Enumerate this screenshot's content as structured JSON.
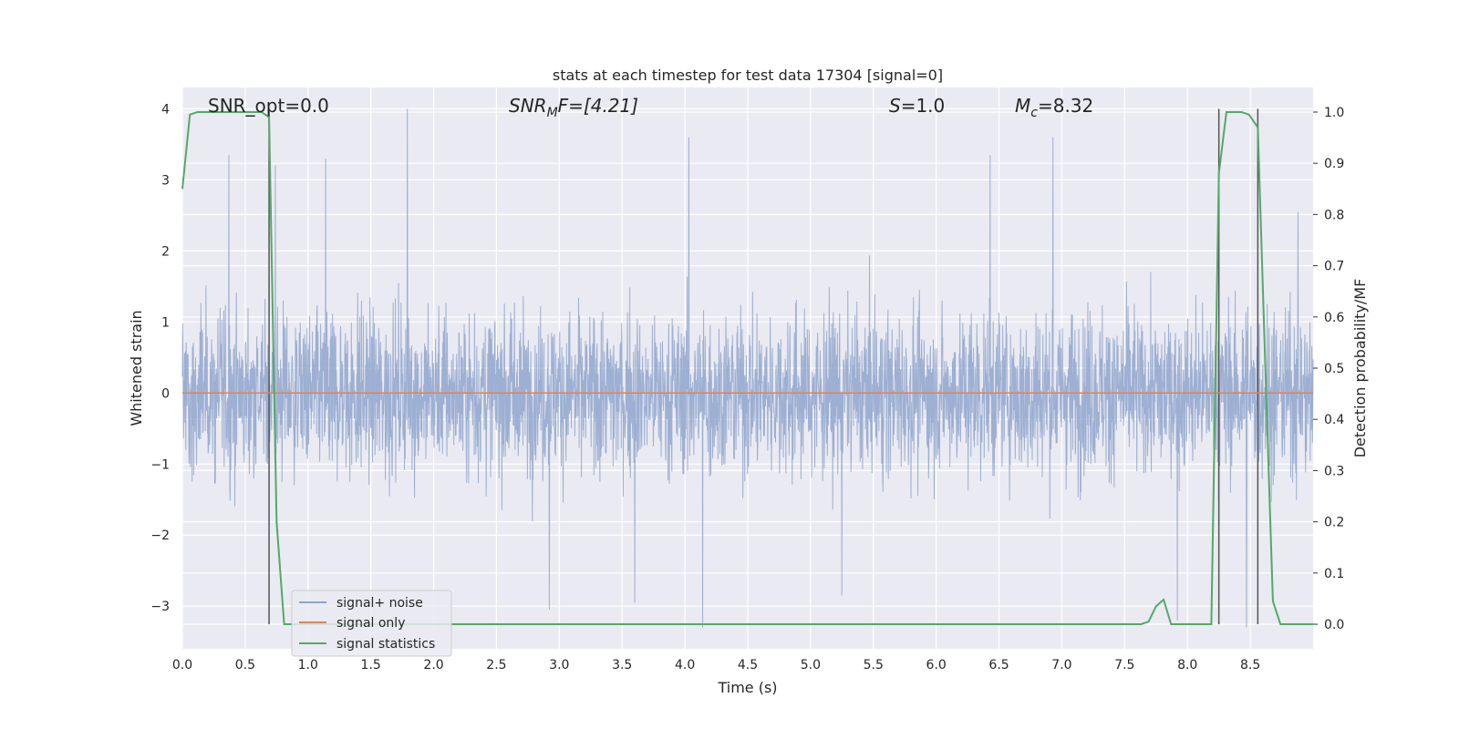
{
  "chart_data": {
    "type": "line",
    "title": "stats at each timestep for test data 17304 [signal=0]",
    "xlabel": "Time (s)",
    "ylabel_left": "Whitened strain",
    "ylabel_right": "Detection probability/MF",
    "xlim": [
      0.0,
      9.0
    ],
    "ylim_left": [
      -3.6,
      4.3
    ],
    "ylim_right": [
      -0.048,
      1.048
    ],
    "x_ticks": [
      "0.0",
      "0.5",
      "1.0",
      "1.5",
      "2.0",
      "2.5",
      "3.0",
      "3.5",
      "4.0",
      "4.5",
      "5.0",
      "5.5",
      "6.0",
      "6.5",
      "7.0",
      "7.5",
      "8.0",
      "8.5"
    ],
    "y_ticks_left": [
      "−3",
      "−2",
      "−1",
      "0",
      "1",
      "2",
      "3",
      "4"
    ],
    "y_ticks_right": [
      "0.0",
      "0.1",
      "0.2",
      "0.3",
      "0.4",
      "0.5",
      "0.6",
      "0.7",
      "0.8",
      "0.9",
      "1.0"
    ],
    "grid": true,
    "legend_position": "lower-left",
    "annotations": {
      "snr_opt": "SNR_opt=0.0",
      "snr_mf_base": "SNR",
      "snr_mf_sub": "M",
      "snr_mf_rest": "F=[4.21]",
      "s_var": "S",
      "s_rest": "=1.0",
      "mc_var": "M",
      "mc_sub": "c",
      "mc_rest": "=8.32"
    },
    "vertical_markers": [
      0.69,
      8.25,
      8.56
    ],
    "series": [
      {
        "name": "signal+ noise",
        "color": "#8fa4cc",
        "axis": "left",
        "description_range": [
          -3.3,
          4.0
        ],
        "peaks": [
          [
            0.37,
            3.35
          ],
          [
            0.74,
            3.2
          ],
          [
            1.14,
            3.3
          ],
          [
            1.79,
            4.0
          ],
          [
            2.92,
            -3.05
          ],
          [
            3.6,
            -2.95
          ],
          [
            4.03,
            3.6
          ],
          [
            4.14,
            -3.3
          ],
          [
            5.25,
            -2.85
          ],
          [
            6.43,
            3.35
          ],
          [
            6.93,
            3.6
          ],
          [
            7.92,
            -3.2
          ],
          [
            8.47,
            -3.3
          ],
          [
            8.88,
            2.55
          ]
        ]
      },
      {
        "name": "signal only",
        "color": "#dd8452",
        "axis": "left",
        "x": [
          0.0,
          9.0
        ],
        "y": [
          0.0,
          0.0
        ]
      },
      {
        "name": "signal statistics",
        "color": "#55a868",
        "axis": "right",
        "x": [
          0.0,
          0.06,
          0.12,
          0.63,
          0.69,
          0.75,
          0.81,
          7.63,
          7.69,
          7.75,
          7.81,
          7.87,
          8.19,
          8.25,
          8.31,
          8.37,
          8.43,
          8.49,
          8.56,
          8.62,
          8.68,
          8.74,
          8.8,
          9.0
        ],
        "y": [
          0.85,
          0.995,
          1.0,
          1.0,
          0.99,
          0.2,
          0.0,
          0.0,
          0.005,
          0.035,
          0.048,
          0.0,
          0.0,
          0.88,
          1.0,
          1.0,
          1.0,
          0.995,
          0.97,
          0.5,
          0.045,
          0.0,
          0.0,
          0.0
        ]
      }
    ]
  }
}
